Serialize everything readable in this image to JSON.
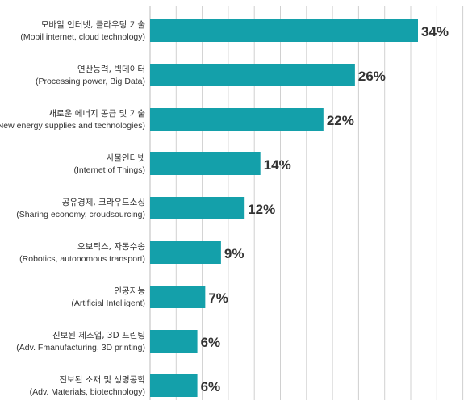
{
  "chart_data": {
    "type": "bar",
    "orientation": "horizontal",
    "categories": [
      {
        "ko": "모바일 인터넷, 클라우딩 기술",
        "en": "(Mobil internet, cloud technology)"
      },
      {
        "ko": "연산능력, 빅데이터",
        "en": "(Processing power, Big Data)"
      },
      {
        "ko": "새로운 에너지 공급 및 기술",
        "en": "(New energy supplies and technologies)"
      },
      {
        "ko": "사물인터넷",
        "en": "(Internet of Things)"
      },
      {
        "ko": "공유경제, 크라우드소싱",
        "en": "(Sharing economy, croudsourcing)"
      },
      {
        "ko": "오보틱스, 자동수송",
        "en": "(Robotics, autonomous transport)"
      },
      {
        "ko": "인공지능",
        "en": "(Artificial Intelligent)"
      },
      {
        "ko": "진보된 제조업, 3D 프린팅",
        "en": "(Adv. Fmanufacturing, 3D printing)"
      },
      {
        "ko": "진보된 소재 및 생명공학",
        "en": "(Adv. Materials, biotechnology)"
      }
    ],
    "values": [
      34,
      26,
      22,
      14,
      12,
      9,
      7,
      6,
      6
    ],
    "value_labels": [
      "34%",
      "26%",
      "22%",
      "14%",
      "12%",
      "9%",
      "7%",
      "6%",
      "6%"
    ],
    "xlim": [
      0,
      35
    ],
    "grid": true,
    "bar_color": "#14a0aa"
  }
}
